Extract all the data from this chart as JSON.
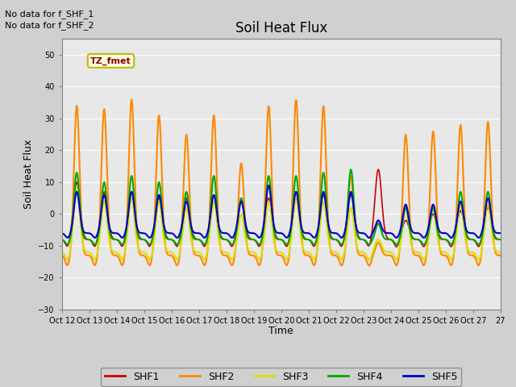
{
  "title": "Soil Heat Flux",
  "ylabel": "Soil Heat Flux",
  "xlabel": "Time",
  "ylim": [
    -30,
    55
  ],
  "yticks": [
    -30,
    -20,
    -10,
    0,
    10,
    20,
    30,
    40,
    50
  ],
  "background_color": "#e8e8e8",
  "fig_background_color": "#d0d0d0",
  "text_no_data_1": "No data for f_SHF_1",
  "text_no_data_2": "No data for f_SHF_2",
  "tz_label": "TZ_fmet",
  "legend_entries": [
    "SHF1",
    "SHF2",
    "SHF3",
    "SHF4",
    "SHF5"
  ],
  "legend_colors": [
    "#cc0000",
    "#ff8800",
    "#dddd00",
    "#00aa00",
    "#0000cc"
  ],
  "num_days": 16,
  "xtick_labels": [
    "Oct 12",
    "Oct 13",
    "Oct 14",
    "Oct 15",
    "Oct 16",
    "Oct 17",
    "Oct 18",
    "Oct 19",
    "Oct 20",
    "Oct 21",
    "Oct 22",
    "Oct 23",
    "Oct 24",
    "Oct 25",
    "Oct 26",
    "Oct 27",
    "27"
  ],
  "shf1_amplitudes": [
    18,
    15,
    15,
    13,
    13,
    12,
    12,
    13,
    13,
    14,
    14,
    22,
    6,
    8,
    9,
    10
  ],
  "shf2_amplitudes": [
    47,
    46,
    49,
    44,
    38,
    44,
    29,
    47,
    49,
    47,
    25,
    4,
    38,
    39,
    41,
    42
  ],
  "shf3_amplitudes": [
    20,
    16,
    17,
    16,
    14,
    16,
    12,
    16,
    17,
    16,
    14,
    4,
    14,
    14,
    15,
    15
  ],
  "shf4_amplitudes": [
    21,
    18,
    20,
    18,
    15,
    20,
    13,
    20,
    20,
    21,
    22,
    5,
    10,
    10,
    15,
    15
  ],
  "shf5_amplitudes": [
    13,
    12,
    13,
    12,
    10,
    12,
    10,
    15,
    13,
    13,
    13,
    4,
    9,
    9,
    10,
    11
  ],
  "shf1_base": -8,
  "shf2_base": -13,
  "shf3_base": -12,
  "shf4_base": -8,
  "shf5_base": -6
}
